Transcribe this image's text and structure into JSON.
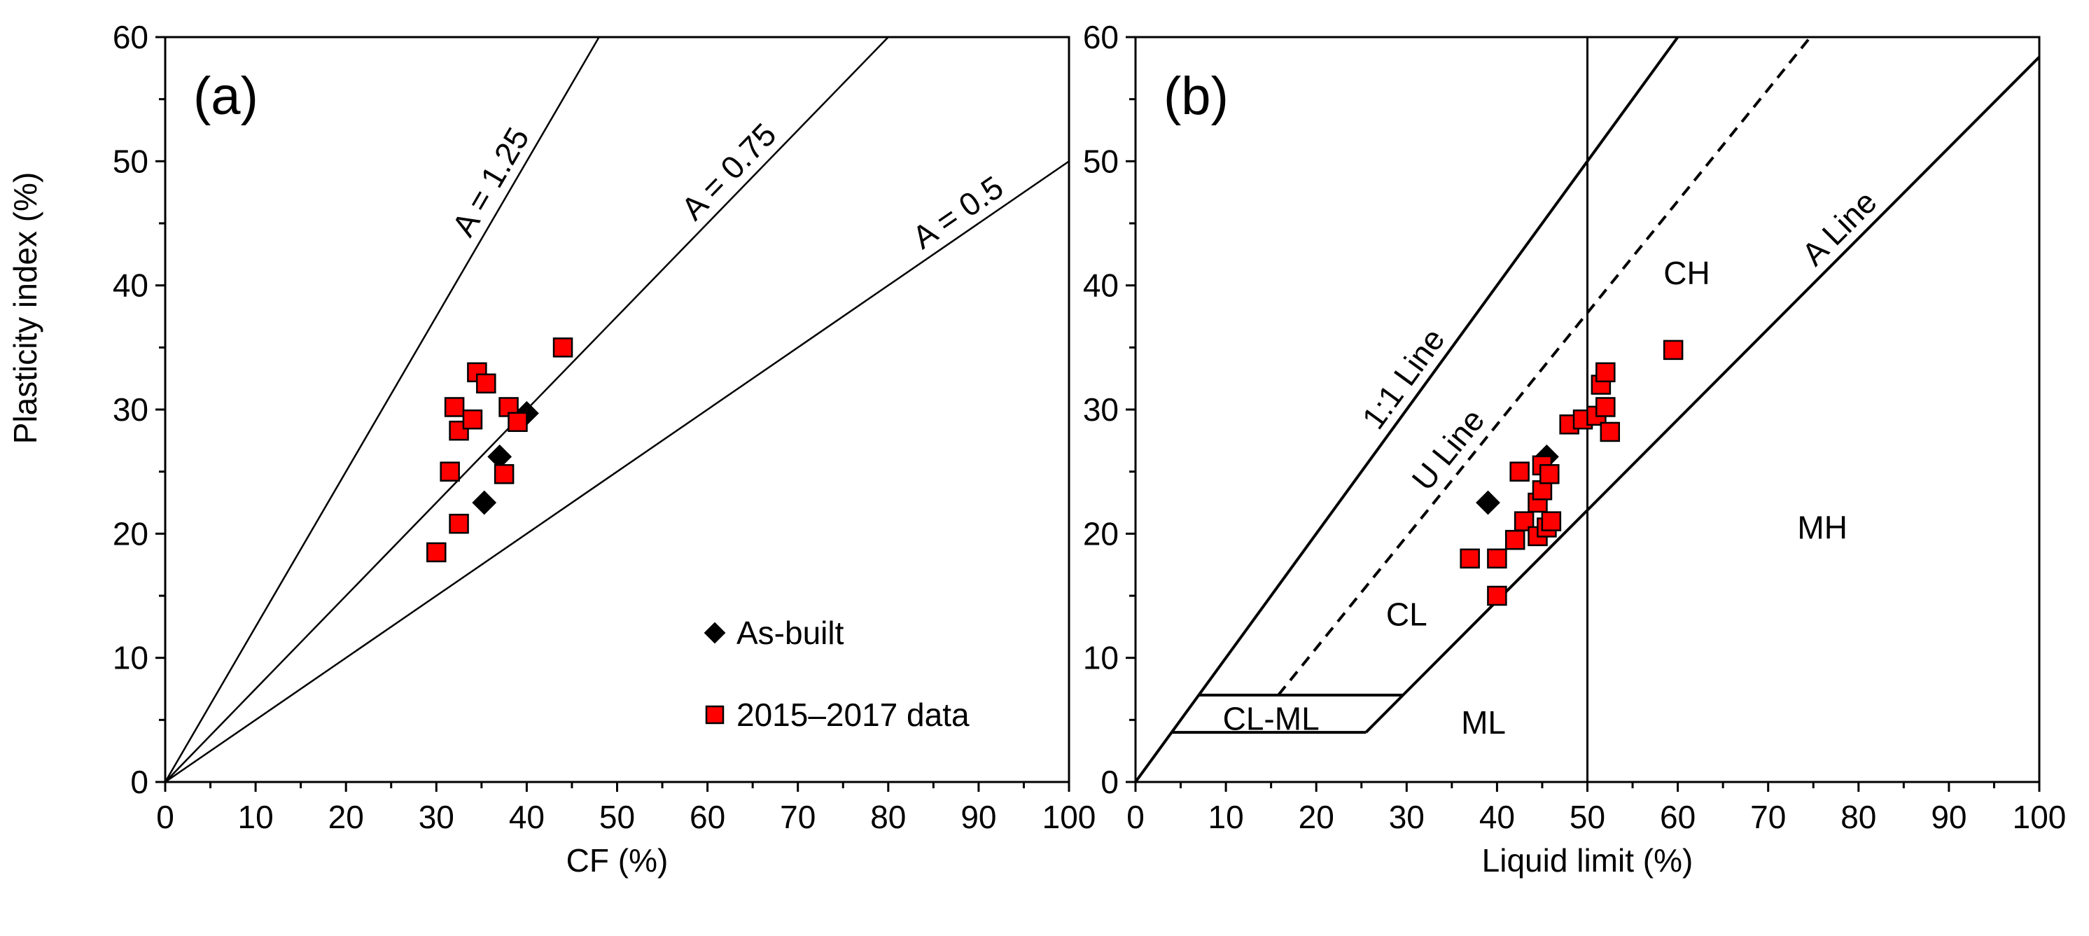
{
  "figure": {
    "y_axis_title": "Plasticity index (%)"
  },
  "legend": {
    "as_built": "As-built",
    "field_data": "2015–2017 data"
  },
  "colors": {
    "as_built": "#000000",
    "field_data": "#ff0000",
    "marker_edge": "#000000"
  },
  "chart_data": [
    {
      "type": "scatter",
      "panel_label": "(a)",
      "title": "",
      "xlabel": "CF (%)",
      "ylabel": "Plasticity index (%)",
      "xlim": [
        0,
        100
      ],
      "ylim": [
        0,
        60
      ],
      "xticks": [
        0,
        10,
        20,
        30,
        40,
        50,
        60,
        70,
        80,
        90,
        100
      ],
      "yticks": [
        0,
        10,
        20,
        30,
        40,
        50,
        60
      ],
      "grid": false,
      "legend_position": "bottom-right",
      "series": [
        {
          "name": "As-built",
          "marker": "diamond",
          "x": [
            37.0,
            40.0,
            35.3
          ],
          "y": [
            26.2,
            29.7,
            22.5
          ]
        },
        {
          "name": "2015–2017 data",
          "marker": "square",
          "x": [
            30.0,
            31.5,
            32.5,
            32.0,
            32.5,
            34.0,
            34.5,
            35.5,
            37.5,
            38.0,
            39.0,
            44.0
          ],
          "y": [
            18.5,
            25.0,
            20.8,
            30.2,
            28.3,
            29.2,
            33.0,
            32.1,
            24.8,
            30.2,
            29.0,
            35.0
          ]
        }
      ],
      "reference_lines": [
        {
          "label": "A = 1.25",
          "slope": 1.25
        },
        {
          "label": "A = 0.75",
          "slope": 0.75
        },
        {
          "label": "A = 0.5",
          "slope": 0.5
        }
      ]
    },
    {
      "type": "scatter",
      "panel_label": "(b)",
      "title": "",
      "xlabel": "Liquid limit (%)",
      "ylabel": "Plasticity index (%)",
      "xlim": [
        0,
        100
      ],
      "ylim": [
        0,
        60
      ],
      "xticks": [
        0,
        10,
        20,
        30,
        40,
        50,
        60,
        70,
        80,
        90,
        100
      ],
      "yticks": [
        0,
        10,
        20,
        30,
        40,
        50,
        60
      ],
      "grid": false,
      "series": [
        {
          "name": "As-built",
          "marker": "diamond",
          "x": [
            39.0,
            45.5
          ],
          "y": [
            22.5,
            26.2
          ]
        },
        {
          "name": "2015–2017 data",
          "marker": "square",
          "x": [
            37.0,
            40.0,
            40.0,
            42.0,
            42.5,
            43.0,
            44.5,
            44.5,
            45.0,
            45.0,
            45.5,
            45.8,
            46.0,
            48.0,
            49.5,
            51.0,
            51.5,
            52.0,
            52.0,
            52.5,
            59.5
          ],
          "y": [
            18.0,
            18.0,
            15.0,
            19.5,
            25.0,
            21.0,
            19.8,
            22.5,
            23.5,
            25.5,
            20.5,
            24.8,
            21.0,
            28.8,
            29.2,
            29.5,
            32.0,
            30.2,
            33.0,
            28.2,
            34.8
          ]
        }
      ],
      "reference_lines": [
        {
          "label": "1:1 Line",
          "equation": "PI = LL"
        },
        {
          "label": "U Line",
          "equation": "PI = 0.9(LL - 8)",
          "style": "dashed"
        },
        {
          "label": "A Line",
          "equation": "PI = 0.73(LL - 20)"
        },
        {
          "label": "",
          "equation": "LL = 50",
          "style": "vertical"
        }
      ],
      "zones": [
        {
          "label": "CH",
          "x": 61,
          "y": 41
        },
        {
          "label": "CL",
          "x": 30,
          "y": 13.5
        },
        {
          "label": "MH",
          "x": 76,
          "y": 20.5
        },
        {
          "label": "ML",
          "x": 38.5,
          "y": 4.8
        },
        {
          "label": "CL-ML",
          "x": 15,
          "y": 5.1
        }
      ]
    }
  ]
}
